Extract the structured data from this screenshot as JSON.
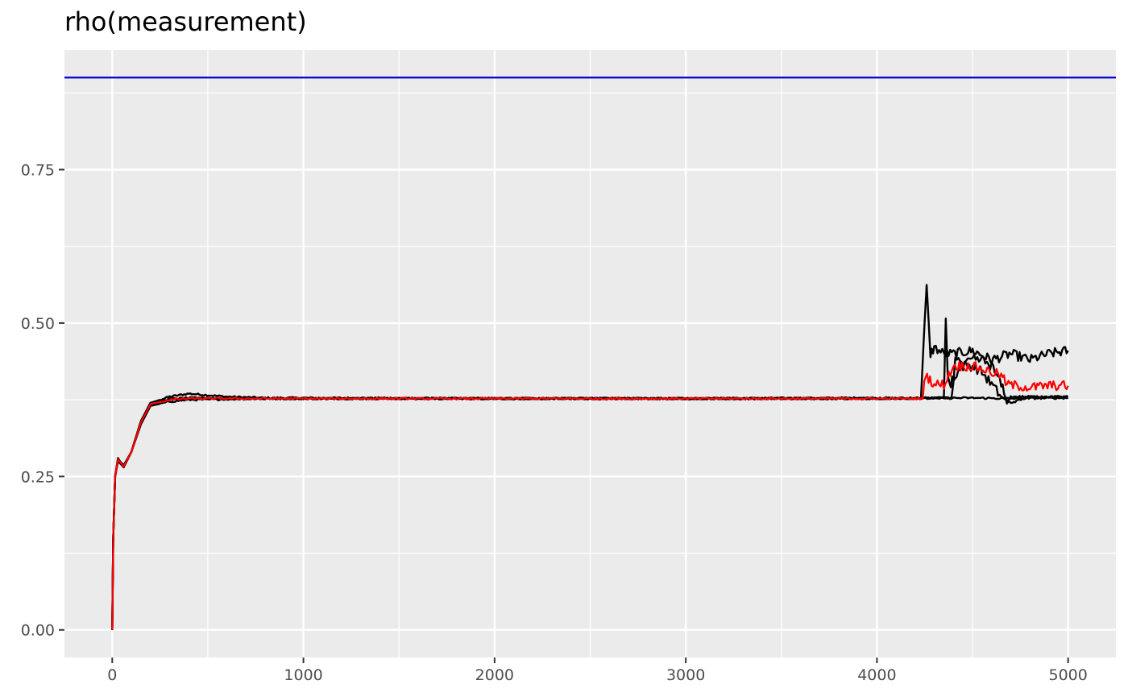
{
  "chart_data": {
    "type": "line",
    "title": "rho(measurement)",
    "xlabel": "",
    "ylabel": "",
    "xlim": [
      -250,
      5250
    ],
    "ylim": [
      -0.045,
      0.945
    ],
    "x_ticks": [
      0,
      1000,
      2000,
      3000,
      4000,
      5000
    ],
    "x_tick_labels": [
      "0",
      "1000",
      "2000",
      "3000",
      "4000",
      "5000"
    ],
    "y_ticks": [
      0.0,
      0.25,
      0.5,
      0.75
    ],
    "y_tick_labels": [
      "0.00",
      "0.25",
      "0.50",
      "0.75"
    ],
    "x_minor_ticks": [
      500,
      1500,
      2500,
      3500,
      4500
    ],
    "y_minor_ticks": [
      0.125,
      0.375,
      0.625,
      0.875
    ],
    "grid": true,
    "legend": "none",
    "colors": {
      "panel": "#ebebeb",
      "grid": "#ffffff",
      "chains": "#000000",
      "mean": "#ff0000",
      "reference": "#0000cd"
    },
    "reference_line": {
      "y": 0.9,
      "color": "#0000cd"
    },
    "series": [
      {
        "color": "#000000",
        "points": [
          [
            0,
            0
          ],
          [
            5,
            0.15
          ],
          [
            15,
            0.25
          ],
          [
            30,
            0.28
          ],
          [
            60,
            0.265
          ],
          [
            100,
            0.29
          ],
          [
            150,
            0.34
          ],
          [
            200,
            0.37
          ],
          [
            300,
            0.38
          ],
          [
            400,
            0.385
          ],
          [
            600,
            0.38
          ],
          [
            800,
            0.378
          ],
          [
            1000,
            0.378
          ],
          [
            2000,
            0.377
          ],
          [
            3000,
            0.377
          ],
          [
            4000,
            0.378
          ],
          [
            4230,
            0.377
          ],
          [
            4250,
            0.5
          ],
          [
            4260,
            0.56
          ],
          [
            4270,
            0.5
          ],
          [
            4280,
            0.45
          ],
          [
            4300,
            0.46
          ],
          [
            4350,
            0.45
          ],
          [
            4400,
            0.45
          ],
          [
            4500,
            0.455
          ],
          [
            4600,
            0.44
          ],
          [
            4700,
            0.45
          ],
          [
            4800,
            0.44
          ],
          [
            4900,
            0.45
          ],
          [
            5000,
            0.455
          ]
        ]
      },
      {
        "color": "#000000",
        "points": [
          [
            0,
            0
          ],
          [
            5,
            0.15
          ],
          [
            15,
            0.25
          ],
          [
            30,
            0.275
          ],
          [
            60,
            0.265
          ],
          [
            100,
            0.29
          ],
          [
            150,
            0.335
          ],
          [
            200,
            0.365
          ],
          [
            300,
            0.372
          ],
          [
            400,
            0.375
          ],
          [
            600,
            0.376
          ],
          [
            800,
            0.377
          ],
          [
            1000,
            0.377
          ],
          [
            2000,
            0.377
          ],
          [
            3000,
            0.377
          ],
          [
            4000,
            0.377
          ],
          [
            4390,
            0.378
          ],
          [
            4400,
            0.4
          ],
          [
            4410,
            0.45
          ],
          [
            4450,
            0.43
          ],
          [
            4500,
            0.43
          ],
          [
            4550,
            0.42
          ],
          [
            4600,
            0.4
          ],
          [
            4650,
            0.38
          ],
          [
            4700,
            0.37
          ],
          [
            4800,
            0.38
          ],
          [
            4900,
            0.38
          ],
          [
            5000,
            0.38
          ]
        ]
      },
      {
        "color": "#000000",
        "points": [
          [
            0,
            0
          ],
          [
            5,
            0.15
          ],
          [
            15,
            0.25
          ],
          [
            30,
            0.278
          ],
          [
            60,
            0.268
          ],
          [
            100,
            0.29
          ],
          [
            150,
            0.34
          ],
          [
            200,
            0.37
          ],
          [
            300,
            0.376
          ],
          [
            400,
            0.378
          ],
          [
            600,
            0.377
          ],
          [
            800,
            0.377
          ],
          [
            1000,
            0.377
          ],
          [
            2000,
            0.377
          ],
          [
            3000,
            0.377
          ],
          [
            4000,
            0.377
          ],
          [
            4500,
            0.378
          ],
          [
            4700,
            0.377
          ],
          [
            5000,
            0.378
          ]
        ]
      },
      {
        "color": "#000000",
        "points": [
          [
            0,
            0
          ],
          [
            5,
            0.15
          ],
          [
            15,
            0.25
          ],
          [
            30,
            0.278
          ],
          [
            60,
            0.268
          ],
          [
            100,
            0.29
          ],
          [
            150,
            0.34
          ],
          [
            200,
            0.37
          ],
          [
            300,
            0.376
          ],
          [
            400,
            0.377
          ],
          [
            600,
            0.377
          ],
          [
            800,
            0.377
          ],
          [
            1000,
            0.377
          ],
          [
            2000,
            0.377
          ],
          [
            3000,
            0.377
          ],
          [
            4000,
            0.377
          ],
          [
            4350,
            0.378
          ],
          [
            4360,
            0.5
          ],
          [
            4370,
            0.42
          ],
          [
            4380,
            0.4
          ],
          [
            4400,
            0.41
          ],
          [
            4450,
            0.43
          ],
          [
            4500,
            0.44
          ],
          [
            4550,
            0.44
          ],
          [
            4600,
            0.43
          ],
          [
            4650,
            0.4
          ],
          [
            4680,
            0.37
          ],
          [
            4700,
            0.38
          ],
          [
            4800,
            0.38
          ],
          [
            4900,
            0.38
          ],
          [
            5000,
            0.38
          ]
        ]
      },
      {
        "color": "#ff0000",
        "points": [
          [
            0,
            0
          ],
          [
            5,
            0.15
          ],
          [
            15,
            0.25
          ],
          [
            30,
            0.278
          ],
          [
            60,
            0.266
          ],
          [
            100,
            0.29
          ],
          [
            150,
            0.338
          ],
          [
            200,
            0.368
          ],
          [
            300,
            0.375
          ],
          [
            400,
            0.377
          ],
          [
            600,
            0.377
          ],
          [
            800,
            0.377
          ],
          [
            1000,
            0.377
          ],
          [
            2000,
            0.377
          ],
          [
            3000,
            0.377
          ],
          [
            4000,
            0.377
          ],
          [
            4240,
            0.377
          ],
          [
            4255,
            0.42
          ],
          [
            4270,
            0.41
          ],
          [
            4300,
            0.4
          ],
          [
            4350,
            0.4
          ],
          [
            4400,
            0.43
          ],
          [
            4500,
            0.43
          ],
          [
            4600,
            0.42
          ],
          [
            4650,
            0.415
          ],
          [
            4680,
            0.4
          ],
          [
            4800,
            0.395
          ],
          [
            4900,
            0.398
          ],
          [
            5000,
            0.398
          ]
        ]
      }
    ]
  }
}
